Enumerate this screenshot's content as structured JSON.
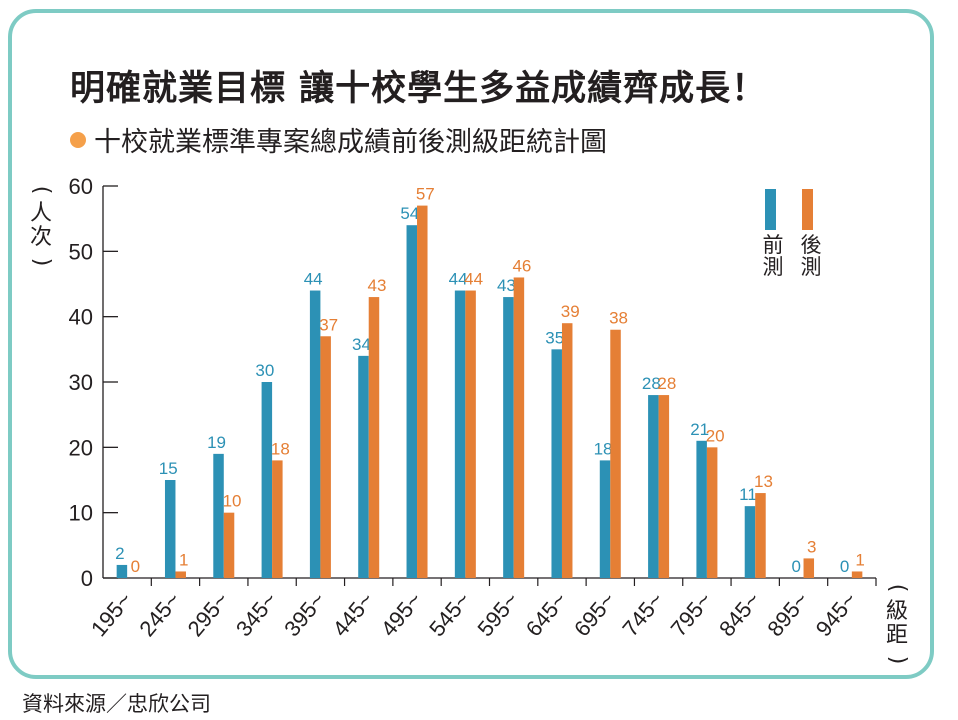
{
  "title": "明確就業目標 讓十校學生多益成績齊成長！",
  "subtitle": "十校就業標準專案總成績前後測級距統計圖",
  "source": "資料來源／忠欣公司",
  "colors": {
    "pre": "#2c91b5",
    "post": "#e57f35",
    "frame": "#7ecbc4",
    "bullet": "#f5a04a"
  },
  "chart_data": {
    "type": "bar",
    "ylabel_chars": [
      "人",
      "次"
    ],
    "xlabel_chars": [
      "級",
      "距"
    ],
    "ylim": [
      0,
      60
    ],
    "yticks": [
      "0",
      "10",
      "20",
      "30",
      "40",
      "50",
      "60"
    ],
    "categories": [
      "195~",
      "245~",
      "295~",
      "345~",
      "395~",
      "445~",
      "495~",
      "545~",
      "595~",
      "645~",
      "695~",
      "745~",
      "795~",
      "845~",
      "895~",
      "945~"
    ],
    "series": [
      {
        "name": "前測",
        "name_chars": [
          "前",
          "測"
        ],
        "values": [
          2,
          15,
          19,
          30,
          44,
          34,
          54,
          44,
          43,
          35,
          18,
          28,
          21,
          11,
          0,
          0
        ]
      },
      {
        "name": "後測",
        "name_chars": [
          "後",
          "測"
        ],
        "values": [
          0,
          1,
          10,
          18,
          37,
          43,
          57,
          44,
          46,
          39,
          38,
          28,
          20,
          13,
          3,
          1
        ]
      }
    ]
  }
}
